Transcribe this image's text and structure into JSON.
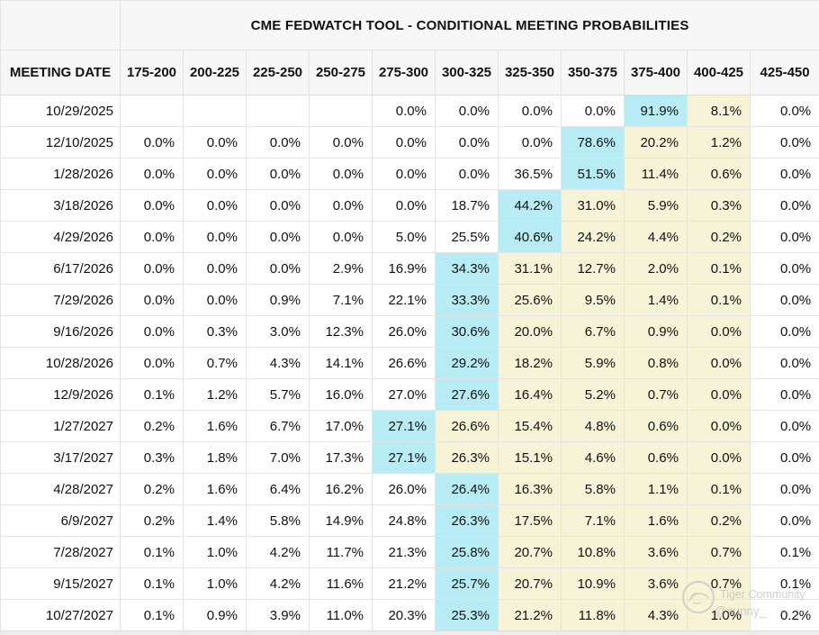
{
  "title": "CME FEDWATCH TOOL - CONDITIONAL MEETING PROBABILITIES",
  "colors": {
    "highlight_blue": "#b7ecf4",
    "highlight_yellow": "#f6f3d7",
    "header_bg": "#f7f7f7"
  },
  "watermark": {
    "line1": "Tiger Community",
    "line2": "@sunny_"
  },
  "table": {
    "date_header": "MEETING DATE",
    "rate_headers": [
      "175-200",
      "200-225",
      "225-250",
      "250-275",
      "275-300",
      "300-325",
      "325-350",
      "350-375",
      "375-400",
      "400-425",
      "425-450"
    ],
    "rows": [
      {
        "date": "10/29/2025",
        "values": [
          "",
          "",
          "",
          "",
          "0.0%",
          "0.0%",
          "0.0%",
          "0.0%",
          "91.9%",
          "8.1%",
          "0.0%"
        ],
        "styles": [
          "w",
          "w",
          "w",
          "w",
          "w",
          "w",
          "w",
          "w",
          "b",
          "y",
          "w"
        ]
      },
      {
        "date": "12/10/2025",
        "values": [
          "0.0%",
          "0.0%",
          "0.0%",
          "0.0%",
          "0.0%",
          "0.0%",
          "0.0%",
          "78.6%",
          "20.2%",
          "1.2%",
          "0.0%"
        ],
        "styles": [
          "w",
          "w",
          "w",
          "w",
          "w",
          "w",
          "w",
          "b",
          "y",
          "y",
          "w"
        ]
      },
      {
        "date": "1/28/2026",
        "values": [
          "0.0%",
          "0.0%",
          "0.0%",
          "0.0%",
          "0.0%",
          "0.0%",
          "36.5%",
          "51.5%",
          "11.4%",
          "0.6%",
          "0.0%"
        ],
        "styles": [
          "w",
          "w",
          "w",
          "w",
          "w",
          "w",
          "w",
          "b",
          "y",
          "y",
          "w"
        ]
      },
      {
        "date": "3/18/2026",
        "values": [
          "0.0%",
          "0.0%",
          "0.0%",
          "0.0%",
          "0.0%",
          "18.7%",
          "44.2%",
          "31.0%",
          "5.9%",
          "0.3%",
          "0.0%"
        ],
        "styles": [
          "w",
          "w",
          "w",
          "w",
          "w",
          "w",
          "b",
          "y",
          "y",
          "y",
          "w"
        ]
      },
      {
        "date": "4/29/2026",
        "values": [
          "0.0%",
          "0.0%",
          "0.0%",
          "0.0%",
          "5.0%",
          "25.5%",
          "40.6%",
          "24.2%",
          "4.4%",
          "0.2%",
          "0.0%"
        ],
        "styles": [
          "w",
          "w",
          "w",
          "w",
          "w",
          "w",
          "b",
          "y",
          "y",
          "y",
          "w"
        ]
      },
      {
        "date": "6/17/2026",
        "values": [
          "0.0%",
          "0.0%",
          "0.0%",
          "2.9%",
          "16.9%",
          "34.3%",
          "31.1%",
          "12.7%",
          "2.0%",
          "0.1%",
          "0.0%"
        ],
        "styles": [
          "w",
          "w",
          "w",
          "w",
          "w",
          "b",
          "y",
          "y",
          "y",
          "y",
          "w"
        ]
      },
      {
        "date": "7/29/2026",
        "values": [
          "0.0%",
          "0.0%",
          "0.9%",
          "7.1%",
          "22.1%",
          "33.3%",
          "25.6%",
          "9.5%",
          "1.4%",
          "0.1%",
          "0.0%"
        ],
        "styles": [
          "w",
          "w",
          "w",
          "w",
          "w",
          "b",
          "y",
          "y",
          "y",
          "y",
          "w"
        ]
      },
      {
        "date": "9/16/2026",
        "values": [
          "0.0%",
          "0.3%",
          "3.0%",
          "12.3%",
          "26.0%",
          "30.6%",
          "20.0%",
          "6.7%",
          "0.9%",
          "0.0%",
          "0.0%"
        ],
        "styles": [
          "w",
          "w",
          "w",
          "w",
          "w",
          "b",
          "y",
          "y",
          "y",
          "y",
          "w"
        ]
      },
      {
        "date": "10/28/2026",
        "values": [
          "0.0%",
          "0.7%",
          "4.3%",
          "14.1%",
          "26.6%",
          "29.2%",
          "18.2%",
          "5.9%",
          "0.8%",
          "0.0%",
          "0.0%"
        ],
        "styles": [
          "w",
          "w",
          "w",
          "w",
          "w",
          "b",
          "y",
          "y",
          "y",
          "y",
          "w"
        ]
      },
      {
        "date": "12/9/2026",
        "values": [
          "0.1%",
          "1.2%",
          "5.7%",
          "16.0%",
          "27.0%",
          "27.6%",
          "16.4%",
          "5.2%",
          "0.7%",
          "0.0%",
          "0.0%"
        ],
        "styles": [
          "w",
          "w",
          "w",
          "w",
          "w",
          "b",
          "y",
          "y",
          "y",
          "y",
          "w"
        ]
      },
      {
        "date": "1/27/2027",
        "values": [
          "0.2%",
          "1.6%",
          "6.7%",
          "17.0%",
          "27.1%",
          "26.6%",
          "15.4%",
          "4.8%",
          "0.6%",
          "0.0%",
          "0.0%"
        ],
        "styles": [
          "w",
          "w",
          "w",
          "w",
          "b",
          "y",
          "y",
          "y",
          "y",
          "y",
          "w"
        ]
      },
      {
        "date": "3/17/2027",
        "values": [
          "0.3%",
          "1.8%",
          "7.0%",
          "17.3%",
          "27.1%",
          "26.3%",
          "15.1%",
          "4.6%",
          "0.6%",
          "0.0%",
          "0.0%"
        ],
        "styles": [
          "w",
          "w",
          "w",
          "w",
          "b",
          "y",
          "y",
          "y",
          "y",
          "y",
          "w"
        ]
      },
      {
        "date": "4/28/2027",
        "values": [
          "0.2%",
          "1.6%",
          "6.4%",
          "16.2%",
          "26.0%",
          "26.4%",
          "16.3%",
          "5.8%",
          "1.1%",
          "0.1%",
          "0.0%"
        ],
        "styles": [
          "w",
          "w",
          "w",
          "w",
          "w",
          "b",
          "y",
          "y",
          "y",
          "y",
          "w"
        ]
      },
      {
        "date": "6/9/2027",
        "values": [
          "0.2%",
          "1.4%",
          "5.8%",
          "14.9%",
          "24.8%",
          "26.3%",
          "17.5%",
          "7.1%",
          "1.6%",
          "0.2%",
          "0.0%"
        ],
        "styles": [
          "w",
          "w",
          "w",
          "w",
          "w",
          "b",
          "y",
          "y",
          "y",
          "y",
          "w"
        ]
      },
      {
        "date": "7/28/2027",
        "values": [
          "0.1%",
          "1.0%",
          "4.2%",
          "11.7%",
          "21.3%",
          "25.8%",
          "20.7%",
          "10.8%",
          "3.6%",
          "0.7%",
          "0.1%"
        ],
        "styles": [
          "w",
          "w",
          "w",
          "w",
          "w",
          "b",
          "y",
          "y",
          "y",
          "y",
          "w"
        ]
      },
      {
        "date": "9/15/2027",
        "values": [
          "0.1%",
          "1.0%",
          "4.2%",
          "11.6%",
          "21.2%",
          "25.7%",
          "20.7%",
          "10.9%",
          "3.6%",
          "0.7%",
          "0.1%"
        ],
        "styles": [
          "w",
          "w",
          "w",
          "w",
          "w",
          "b",
          "y",
          "y",
          "y",
          "y",
          "w"
        ]
      },
      {
        "date": "10/27/2027",
        "values": [
          "0.1%",
          "0.9%",
          "3.9%",
          "11.0%",
          "20.3%",
          "25.3%",
          "21.2%",
          "11.8%",
          "4.3%",
          "1.0%",
          "0.2%"
        ],
        "styles": [
          "w",
          "w",
          "w",
          "w",
          "w",
          "b",
          "y",
          "y",
          "y",
          "y",
          "w"
        ]
      }
    ]
  }
}
